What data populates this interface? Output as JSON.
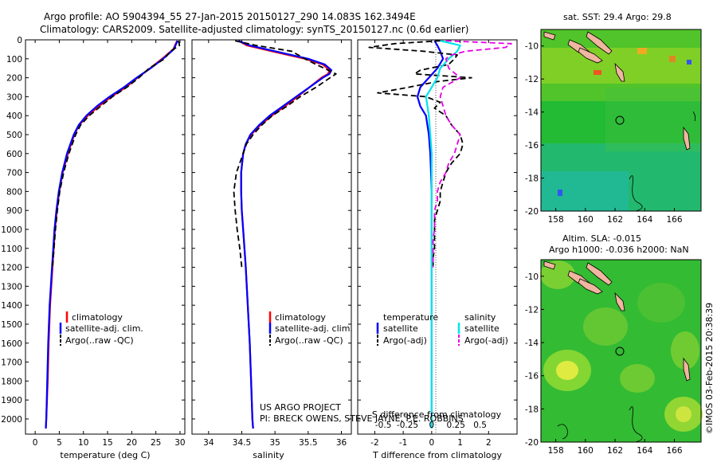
{
  "header": {
    "line1": "Argo profile: AO 5904394_55 27-Jan-2015 20150127_290 14.083S 162.3494E",
    "line2": "Climatology: CARS2009. Satellite-adjusted climatology: synTS_20150127.nc (0.6d earlier)"
  },
  "colors": {
    "climatology": "#ff0000",
    "satellite": "#0000ff",
    "argo": "#000000",
    "satellite_s": "#00e5e5",
    "argo_s": "#e600e6"
  },
  "depth_ticks": [
    "0",
    "100",
    "200",
    "300",
    "400",
    "500",
    "600",
    "700",
    "800",
    "900",
    "1000",
    "1100",
    "1200",
    "1300",
    "1400",
    "1500",
    "1600",
    "1700",
    "1800",
    "1900",
    "2000"
  ],
  "chart_data": [
    {
      "type": "line",
      "xlabel": "temperature (deg C)",
      "xlim": [
        -2,
        31
      ],
      "ylim": [
        2080,
        0
      ],
      "x_ticks": [
        "0",
        "5",
        "10",
        "15",
        "20",
        "25",
        "30"
      ],
      "x_tick_values": [
        0,
        5,
        10,
        15,
        20,
        25,
        30
      ],
      "legend": [
        "climatology",
        "satellite-adj. clim.",
        "Argo(..raw -QC)"
      ],
      "series": [
        {
          "name": "climatology",
          "depth": [
            5,
            50,
            100,
            150,
            200,
            250,
            300,
            350,
            400,
            450,
            500,
            600,
            700,
            800,
            900,
            1000,
            1200,
            1400,
            1600,
            1800,
            2000,
            2050
          ],
          "values": [
            29.4,
            28.6,
            26.3,
            23.8,
            21.2,
            18.8,
            15.8,
            13.2,
            10.9,
            9.1,
            8.1,
            6.8,
            5.7,
            5.0,
            4.5,
            4.1,
            3.6,
            3.1,
            2.8,
            2.6,
            2.3,
            2.2
          ]
        },
        {
          "name": "satellite-adj. clim.",
          "depth": [
            5,
            50,
            100,
            150,
            200,
            250,
            300,
            350,
            400,
            450,
            500,
            600,
            700,
            800,
            900,
            1000,
            1200,
            1400,
            1600,
            1800,
            2000,
            2050
          ],
          "values": [
            29.5,
            28.7,
            26.5,
            23.9,
            21.0,
            18.4,
            15.4,
            12.8,
            10.6,
            9.0,
            8.0,
            6.6,
            5.6,
            4.9,
            4.4,
            4.0,
            3.5,
            3.0,
            2.7,
            2.5,
            2.3,
            2.2
          ]
        },
        {
          "name": "Argo(..raw -QC)",
          "depth": [
            5,
            30,
            60,
            100,
            150,
            200,
            250,
            300,
            350,
            400,
            450,
            500,
            600,
            700,
            800,
            900,
            1000,
            1100,
            1200
          ],
          "values": [
            29.7,
            29.9,
            28.0,
            26.8,
            23.6,
            21.5,
            19.0,
            16.0,
            13.6,
            11.2,
            9.4,
            8.4,
            7.0,
            5.9,
            5.1,
            4.6,
            4.2,
            3.9,
            3.6
          ]
        }
      ]
    },
    {
      "type": "line",
      "xlabel": "salinity",
      "xlim": [
        33.75,
        36.15
      ],
      "ylim": [
        2080,
        0
      ],
      "x_ticks": [
        "34",
        "34.5",
        "35",
        "35.5",
        "36"
      ],
      "x_tick_values": [
        34,
        34.5,
        35,
        35.5,
        36
      ],
      "legend": [
        "climatology",
        "satellite-adj. clim.",
        "Argo(..raw -QC)"
      ],
      "annotation1": "US ARGO PROJECT",
      "annotation2": "PI: BRECK OWENS, STEVE JAYNE, P.E. ROBBINS",
      "series": [
        {
          "name": "climatology",
          "depth": [
            5,
            30,
            60,
            100,
            130,
            160,
            180,
            200,
            250,
            300,
            350,
            400,
            450,
            500,
            550,
            600,
            700,
            800,
            900,
            1000,
            1200,
            1400,
            1600,
            1800,
            2000,
            2050
          ],
          "values": [
            34.45,
            34.58,
            34.95,
            35.45,
            35.72,
            35.82,
            35.8,
            35.7,
            35.52,
            35.34,
            35.15,
            34.95,
            34.78,
            34.64,
            34.56,
            34.52,
            34.49,
            34.49,
            34.5,
            34.52,
            34.56,
            34.59,
            34.62,
            34.64,
            34.66,
            34.67
          ]
        },
        {
          "name": "satellite-adj. clim.",
          "depth": [
            5,
            30,
            60,
            100,
            130,
            160,
            180,
            200,
            250,
            300,
            350,
            400,
            450,
            500,
            550,
            600,
            700,
            800,
            900,
            1000,
            1200,
            1400,
            1600,
            1800,
            2000,
            2050
          ],
          "values": [
            34.45,
            34.62,
            35.0,
            35.5,
            35.75,
            35.85,
            35.82,
            35.72,
            35.52,
            35.32,
            35.12,
            34.92,
            34.76,
            34.63,
            34.56,
            34.52,
            34.49,
            34.49,
            34.5,
            34.52,
            34.56,
            34.59,
            34.62,
            34.64,
            34.66,
            34.67
          ]
        },
        {
          "name": "Argo(..raw -QC)",
          "depth": [
            5,
            30,
            60,
            100,
            130,
            160,
            180,
            200,
            250,
            300,
            350,
            400,
            450,
            500,
            550,
            600,
            700,
            800,
            900,
            1000,
            1100,
            1200
          ],
          "values": [
            34.4,
            34.72,
            35.25,
            35.45,
            35.62,
            35.8,
            35.92,
            35.83,
            35.62,
            35.38,
            35.18,
            34.96,
            34.8,
            34.67,
            34.57,
            34.52,
            34.42,
            34.38,
            34.4,
            34.43,
            34.47,
            34.5
          ]
        }
      ]
    },
    {
      "type": "line",
      "xlabel": "T difference from climatology",
      "x2label": "S difference from climatology",
      "xlim": [
        -2.6,
        3.0
      ],
      "ylim": [
        2080,
        0
      ],
      "x_ticks": [
        "-2",
        "-1",
        "0",
        "1",
        "2"
      ],
      "x_tick_values": [
        -2,
        -1,
        0,
        1,
        2
      ],
      "x2_ticks": [
        "-0.5",
        "-0.25",
        "0",
        "0.25",
        "0.5"
      ],
      "x2_tick_values": [
        -1.7,
        -0.85,
        0,
        0.85,
        1.7
      ],
      "legend_t_title": "temperature",
      "legend_s_title": "salinity",
      "legend_t": [
        "satellite",
        "Argo(-adj)"
      ],
      "legend_s": [
        "satellite",
        "Argo(-adj)"
      ],
      "series": [
        {
          "name": "satellite",
          "depth": [
            5,
            30,
            60,
            100,
            150,
            200,
            250,
            300,
            350,
            400,
            500,
            600,
            800,
            1000,
            1500,
            2000,
            2050
          ],
          "values": [
            0.1,
            0.2,
            0.3,
            0.4,
            0.2,
            -0.1,
            -0.4,
            -0.5,
            -0.4,
            -0.2,
            -0.1,
            -0.05,
            0,
            0,
            0,
            0,
            0
          ]
        },
        {
          "name": "Argo(-adj)",
          "depth": [
            5,
            20,
            40,
            60,
            80,
            100,
            130,
            160,
            180,
            200,
            220,
            250,
            280,
            300,
            330,
            360,
            400,
            450,
            500,
            550,
            600,
            650,
            700,
            750,
            800,
            850,
            900,
            950,
            1000,
            1050,
            1100,
            1150,
            1200
          ],
          "values": [
            0.3,
            -1.3,
            -2.2,
            -0.3,
            0.9,
            0.8,
            0.6,
            -0.4,
            -0.6,
            1.4,
            0.2,
            -0.8,
            -1.9,
            -0.2,
            0.3,
            0.1,
            0.5,
            0.7,
            1.0,
            1.1,
            1.0,
            0.7,
            0.5,
            0.4,
            0.3,
            0.3,
            0.2,
            0.1,
            0.1,
            0.1,
            0.1,
            0.05,
            0.05
          ]
        },
        {
          "name": "satellite",
          "depth": [
            5,
            30,
            60,
            100,
            150,
            200,
            250,
            300,
            400,
            500,
            600,
            800,
            1000,
            1500,
            2000,
            2050
          ],
          "values": [
            0.3,
            1.0,
            0.9,
            0.6,
            0.3,
            0.2,
            0.0,
            -0.2,
            -0.1,
            -0.05,
            0,
            0,
            0,
            0,
            0,
            0
          ]
        },
        {
          "name": "Argo(-adj)",
          "depth": [
            5,
            20,
            40,
            60,
            80,
            100,
            150,
            200,
            250,
            300,
            400,
            450,
            500,
            550,
            600,
            650,
            700,
            750,
            800,
            850,
            900,
            950,
            1000,
            1050,
            1100,
            1150,
            1200
          ],
          "values": [
            0.5,
            2.8,
            2.6,
            1.2,
            0.7,
            0.5,
            0.6,
            1.0,
            0.4,
            0.3,
            0.5,
            0.7,
            1.0,
            0.9,
            0.8,
            0.6,
            0.5,
            0.3,
            0.2,
            0.2,
            0.1,
            0.1,
            0.1,
            0.05,
            0.05,
            0.05,
            0.05
          ]
        }
      ]
    }
  ],
  "maps": {
    "sst": {
      "title": "sat. SST: 29.4 Argo: 29.8",
      "x_ticks": [
        "158",
        "160",
        "162",
        "164",
        "166"
      ],
      "y_ticks": [
        "-10",
        "-12",
        "-14",
        "-16",
        "-18",
        "-20"
      ]
    },
    "sla": {
      "title1": "Altim. SLA: -0.015",
      "title2": "Argo h1000: -0.036 h2000: NaN",
      "x_ticks": [
        "158",
        "160",
        "162",
        "164",
        "166"
      ],
      "y_ticks": [
        "-10",
        "-12",
        "-14",
        "-16",
        "-18",
        "-20"
      ]
    }
  },
  "credit": "©IMOS 03-Feb-2015 20:38:39"
}
